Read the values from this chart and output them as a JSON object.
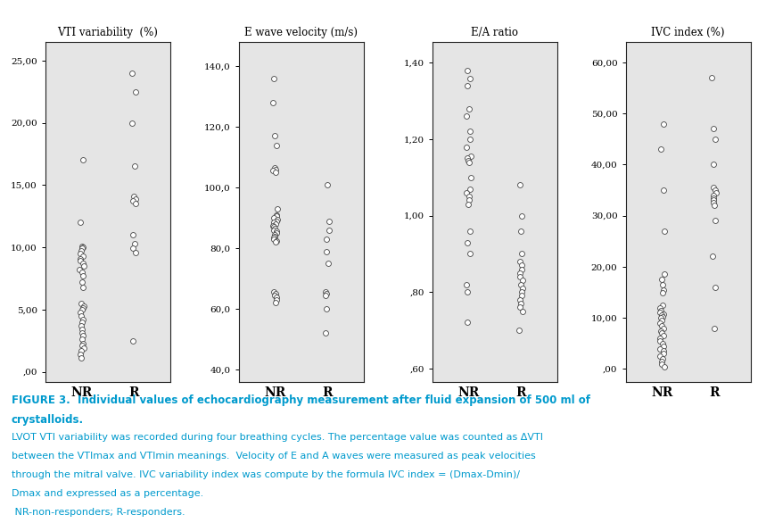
{
  "panels": [
    {
      "title": "VTI variability  (%)",
      "ylabel_ticks": [
        ",00",
        "5,00",
        "10,00",
        "15,00",
        "20,00",
        "25,00"
      ],
      "yticks": [
        0,
        5,
        10,
        15,
        20,
        25
      ],
      "ylim": [
        -0.8,
        26.5
      ],
      "NR": [
        17.0,
        12.0,
        10.1,
        10.0,
        9.9,
        9.7,
        9.5,
        9.3,
        9.1,
        8.9,
        8.7,
        8.5,
        8.2,
        8.0,
        7.7,
        7.2,
        6.8,
        5.5,
        5.3,
        5.1,
        5.0,
        4.8,
        4.5,
        4.2,
        4.0,
        3.7,
        3.4,
        3.1,
        2.9,
        2.6,
        2.3,
        2.1,
        1.9,
        1.7,
        1.4,
        1.1
      ],
      "R": [
        24.0,
        22.5,
        20.0,
        16.5,
        14.1,
        13.9,
        13.7,
        13.5,
        11.0,
        10.3,
        9.9,
        9.6,
        2.5
      ]
    },
    {
      "title": "E wave velocity (m/s)",
      "ylabel_ticks": [
        "40,0",
        "60,0",
        "80,0",
        "100,0",
        "120,0",
        "140,0"
      ],
      "yticks": [
        40,
        60,
        80,
        100,
        120,
        140
      ],
      "ylim": [
        36,
        148
      ],
      "NR": [
        136.0,
        128.0,
        117.0,
        114.0,
        106.5,
        106.0,
        105.5,
        105.0,
        93.0,
        91.0,
        90.5,
        90.0,
        89.5,
        89.0,
        88.5,
        88.0,
        87.5,
        87.0,
        86.5,
        86.0,
        85.5,
        85.0,
        84.5,
        84.0,
        83.5,
        83.0,
        82.5,
        82.0,
        65.5,
        65.0,
        64.5,
        64.0,
        63.0,
        62.0
      ],
      "R": [
        101.0,
        89.0,
        86.0,
        83.0,
        79.0,
        75.0,
        65.5,
        65.0,
        64.5,
        60.0,
        52.0
      ]
    },
    {
      "title": "E/A ratio",
      "ylabel_ticks": [
        ",60",
        ",80",
        "1,00",
        "1,20",
        "1,40"
      ],
      "yticks": [
        0.6,
        0.8,
        1.0,
        1.2,
        1.4
      ],
      "ylim": [
        0.565,
        1.455
      ],
      "NR": [
        1.38,
        1.36,
        1.34,
        1.28,
        1.26,
        1.22,
        1.2,
        1.18,
        1.155,
        1.15,
        1.145,
        1.14,
        1.1,
        1.07,
        1.06,
        1.05,
        1.04,
        1.03,
        0.96,
        0.93,
        0.9,
        0.82,
        0.8,
        0.72
      ],
      "R": [
        1.08,
        1.0,
        0.96,
        0.9,
        0.88,
        0.87,
        0.86,
        0.85,
        0.84,
        0.83,
        0.82,
        0.81,
        0.8,
        0.79,
        0.78,
        0.77,
        0.76,
        0.75,
        0.7
      ]
    },
    {
      "title": "IVC index (%)",
      "ylabel_ticks": [
        ",00",
        "10,00",
        "20,00",
        "30,00",
        "40,00",
        "50,00",
        "60,00"
      ],
      "yticks": [
        0,
        10,
        20,
        30,
        40,
        50,
        60
      ],
      "ylim": [
        -2.5,
        64
      ],
      "NR": [
        48.0,
        43.0,
        35.0,
        27.0,
        18.5,
        17.5,
        16.5,
        15.5,
        15.0,
        12.5,
        12.0,
        11.5,
        11.0,
        10.8,
        10.5,
        10.2,
        10.0,
        9.5,
        9.0,
        8.5,
        8.0,
        7.5,
        7.0,
        6.5,
        6.0,
        5.5,
        5.0,
        4.5,
        4.0,
        3.5,
        3.0,
        2.5,
        2.0,
        1.5,
        1.0,
        0.5
      ],
      "R": [
        57.0,
        47.0,
        45.0,
        40.0,
        35.5,
        35.0,
        34.5,
        34.0,
        33.5,
        33.0,
        32.5,
        32.0,
        29.0,
        22.0,
        16.0,
        8.0
      ]
    }
  ],
  "xlabel_NR": "NR",
  "xlabel_R": "R",
  "background_color": "#e5e5e5",
  "dot_facecolor": "#ffffff",
  "dot_edgecolor": "#444444",
  "dot_size": 18,
  "dot_linewidth": 0.6,
  "caption_bold_line1": "FIGURE 3.  Individual values of echocardiography measurement after fluid expansion of 500 ml of",
  "caption_bold_line2": "crystalloids.",
  "caption_normal_line3": "LVOT VTI variability was recorded during four breathing cycles. The percentage value was counted as ΔVTI",
  "caption_normal_line4": "between the VTImax and VTImin meanings.  Velocity of E and A waves were measured as peak velocities",
  "caption_normal_line5": "through the mitral valve. IVC variability index was compute by the formula IVC index = (Dmax-Dmin)/",
  "caption_normal_line6": "Dmax and expressed as a percentage.",
  "caption_normal_line7": " NR-non-responders; R-responders.",
  "caption_color": "#009acd",
  "title_fontsize": 8.5,
  "tick_fontsize": 7.5,
  "xlabel_fontsize": 10
}
